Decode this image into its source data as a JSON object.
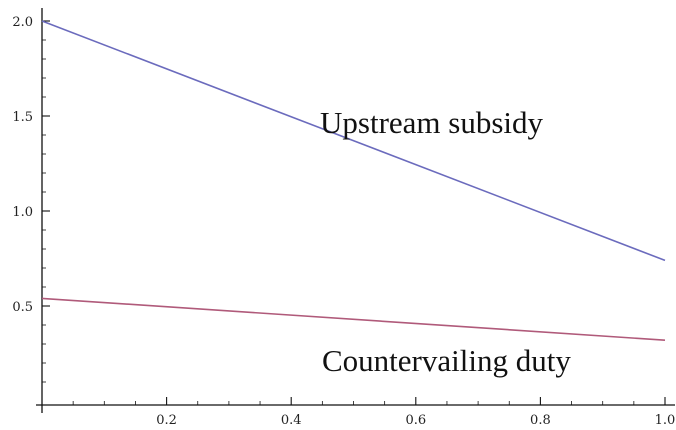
{
  "chart_data": {
    "type": "line",
    "title": "",
    "xlabel": "",
    "ylabel": "",
    "xlim": [
      0,
      1
    ],
    "ylim": [
      0.05,
      2.05
    ],
    "x_ticks": [
      "0.2",
      "0.4",
      "0.6",
      "0.8",
      "1.0"
    ],
    "y_ticks": [
      "0.5",
      "1.0",
      "1.5",
      "2.0"
    ],
    "grid": false,
    "series": [
      {
        "name": "Upstream subsidy",
        "color": "#6b6bbd",
        "x": [
          0,
          1
        ],
        "y": [
          2.0,
          0.74
        ]
      },
      {
        "name": "Countervailing duty",
        "color": "#b05a7a",
        "x": [
          0,
          1
        ],
        "y": [
          0.54,
          0.32
        ]
      }
    ]
  }
}
